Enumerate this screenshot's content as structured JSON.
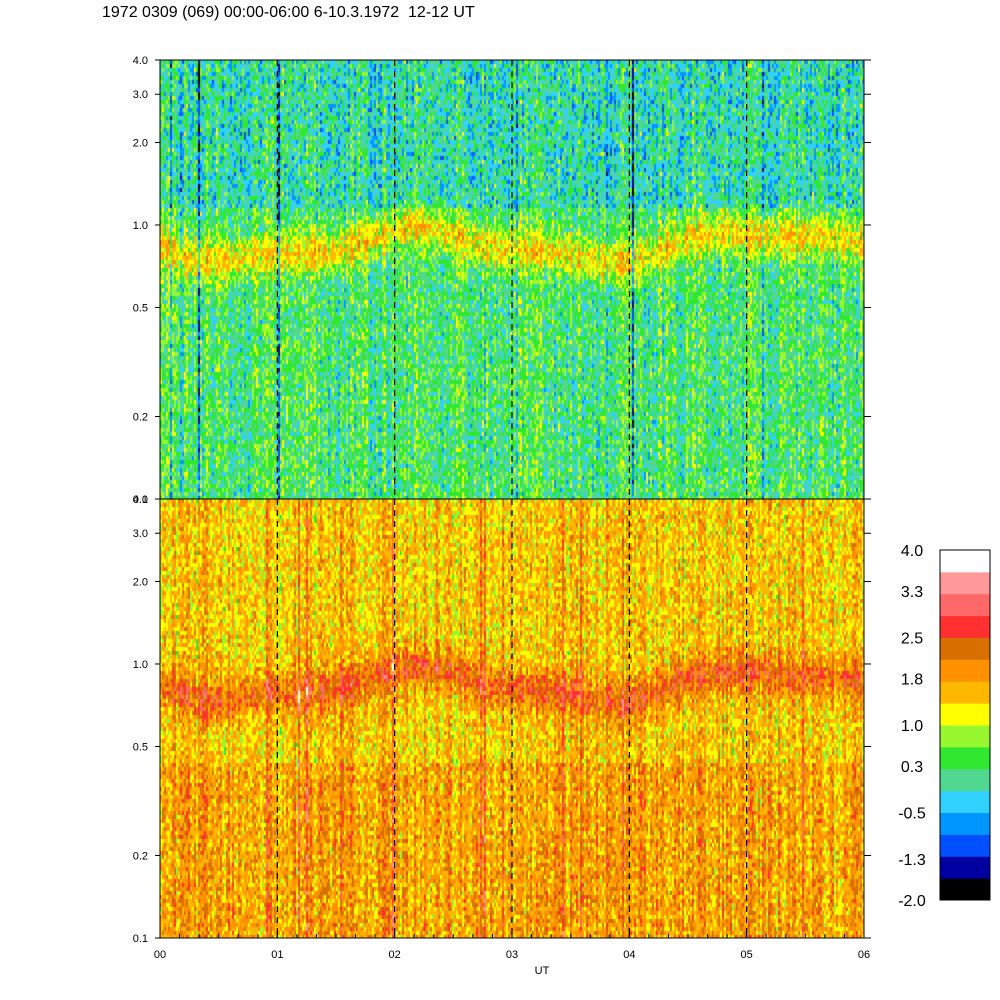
{
  "title": "1972 0309 (069) 00:00-06:00 6-10.3.1972  12-12 UT",
  "chart_data": [
    {
      "type": "heatmap",
      "panel": "upper",
      "y_scale": "log",
      "ylim": [
        0.1,
        4.0
      ],
      "y_ticks": [
        "4.0",
        "3.0",
        "2.0",
        "1.0",
        "0.5",
        "0.2",
        "0.1"
      ],
      "y_tick_values": [
        4.0,
        3.0,
        2.0,
        1.0,
        0.5,
        0.2,
        0.1
      ],
      "xlim": [
        0,
        6
      ],
      "x_dashed_lines": [
        1,
        2,
        3,
        4,
        5
      ],
      "band_center_y": 0.85,
      "band_level": 1.0,
      "background_level": 0.3
    },
    {
      "type": "heatmap",
      "panel": "lower",
      "y_scale": "log",
      "ylim": [
        0.1,
        4.0
      ],
      "y_ticks": [
        "4.0",
        "3.0",
        "2.0",
        "1.0",
        "0.5",
        "0.2",
        "0.1"
      ],
      "y_tick_values": [
        4.0,
        3.0,
        2.0,
        1.0,
        0.5,
        0.2,
        0.1
      ],
      "xlim": [
        0,
        6
      ],
      "x_ticks": [
        "00",
        "01",
        "02",
        "03",
        "04",
        "05",
        "06"
      ],
      "x_tick_values": [
        0,
        1,
        2,
        3,
        4,
        5,
        6
      ],
      "xlabel": "UT",
      "x_dashed_lines": [
        1,
        2,
        3,
        4,
        5
      ],
      "band_center_y": 0.85,
      "band_level": 2.0,
      "background_level": 1.5
    }
  ],
  "colorbar": {
    "labels": [
      "4.0",
      "3.3",
      "2.5",
      "1.8",
      "1.0",
      "0.3",
      "-0.5",
      "-1.3",
      "-2.0"
    ],
    "label_values": [
      4.0,
      3.3,
      2.5,
      1.8,
      1.0,
      0.3,
      -0.5,
      -1.3,
      -2.0
    ],
    "range": [
      -2.0,
      4.0
    ],
    "colors": [
      "#000000",
      "#0000a0",
      "#0050ff",
      "#0096ff",
      "#30d0ff",
      "#50d890",
      "#30e830",
      "#98f830",
      "#ffff00",
      "#ffb800",
      "#ff9000",
      "#d87000",
      "#ff3030",
      "#ff6868",
      "#ff9898",
      "#ffffff"
    ]
  }
}
